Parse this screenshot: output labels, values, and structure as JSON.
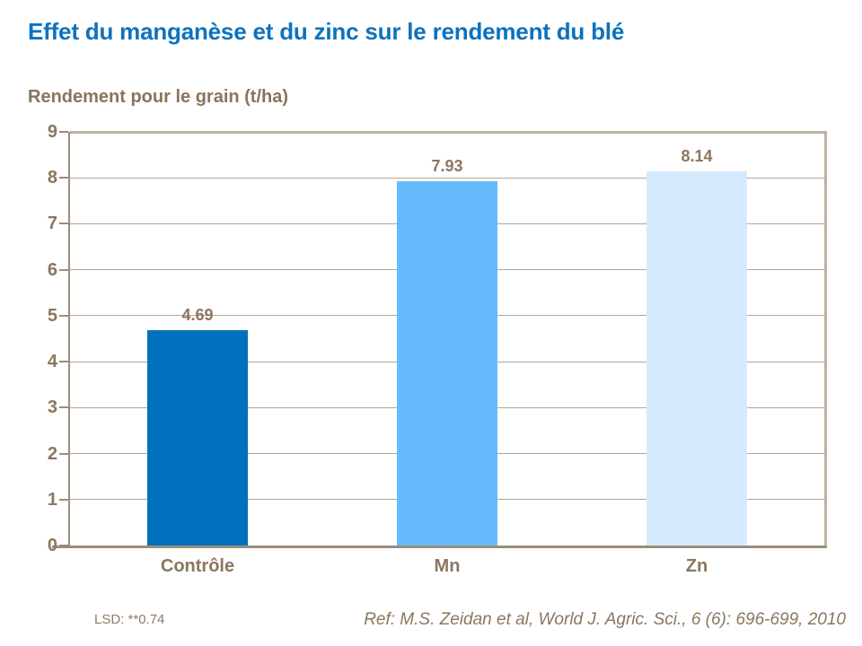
{
  "chart_data": {
    "type": "bar",
    "title": "Effet du manganèse et du zinc sur le rendement du blé",
    "ylabel": "Rendement pour le grain (t/ha)",
    "categories": [
      "Contrôle",
      "Mn",
      "Zn"
    ],
    "values": [
      4.69,
      7.93,
      8.14
    ],
    "value_labels": [
      "4.69",
      "7.93",
      "8.14"
    ],
    "bar_colors": [
      "#0071bd",
      "#66bbfc",
      "#d5eafc"
    ],
    "ylim": [
      0,
      9
    ],
    "yticks": [
      0,
      1,
      2,
      3,
      4,
      5,
      6,
      7,
      8,
      9
    ],
    "grid": true,
    "legend": "none"
  },
  "footnotes": {
    "lsd": "LSD: **0.74",
    "reference": "Ref: M.S. Zeidan et al, World J. Agric. Sci., 6 (6): 696-699, 2010"
  },
  "colors": {
    "title_blue": "#0c72c0",
    "text_brown": "#8a775f",
    "grid_tan": "#b2a695",
    "border_tan": "#bdb2a3",
    "axis_brown": "#9a8d7b",
    "background": "#ffffff"
  }
}
